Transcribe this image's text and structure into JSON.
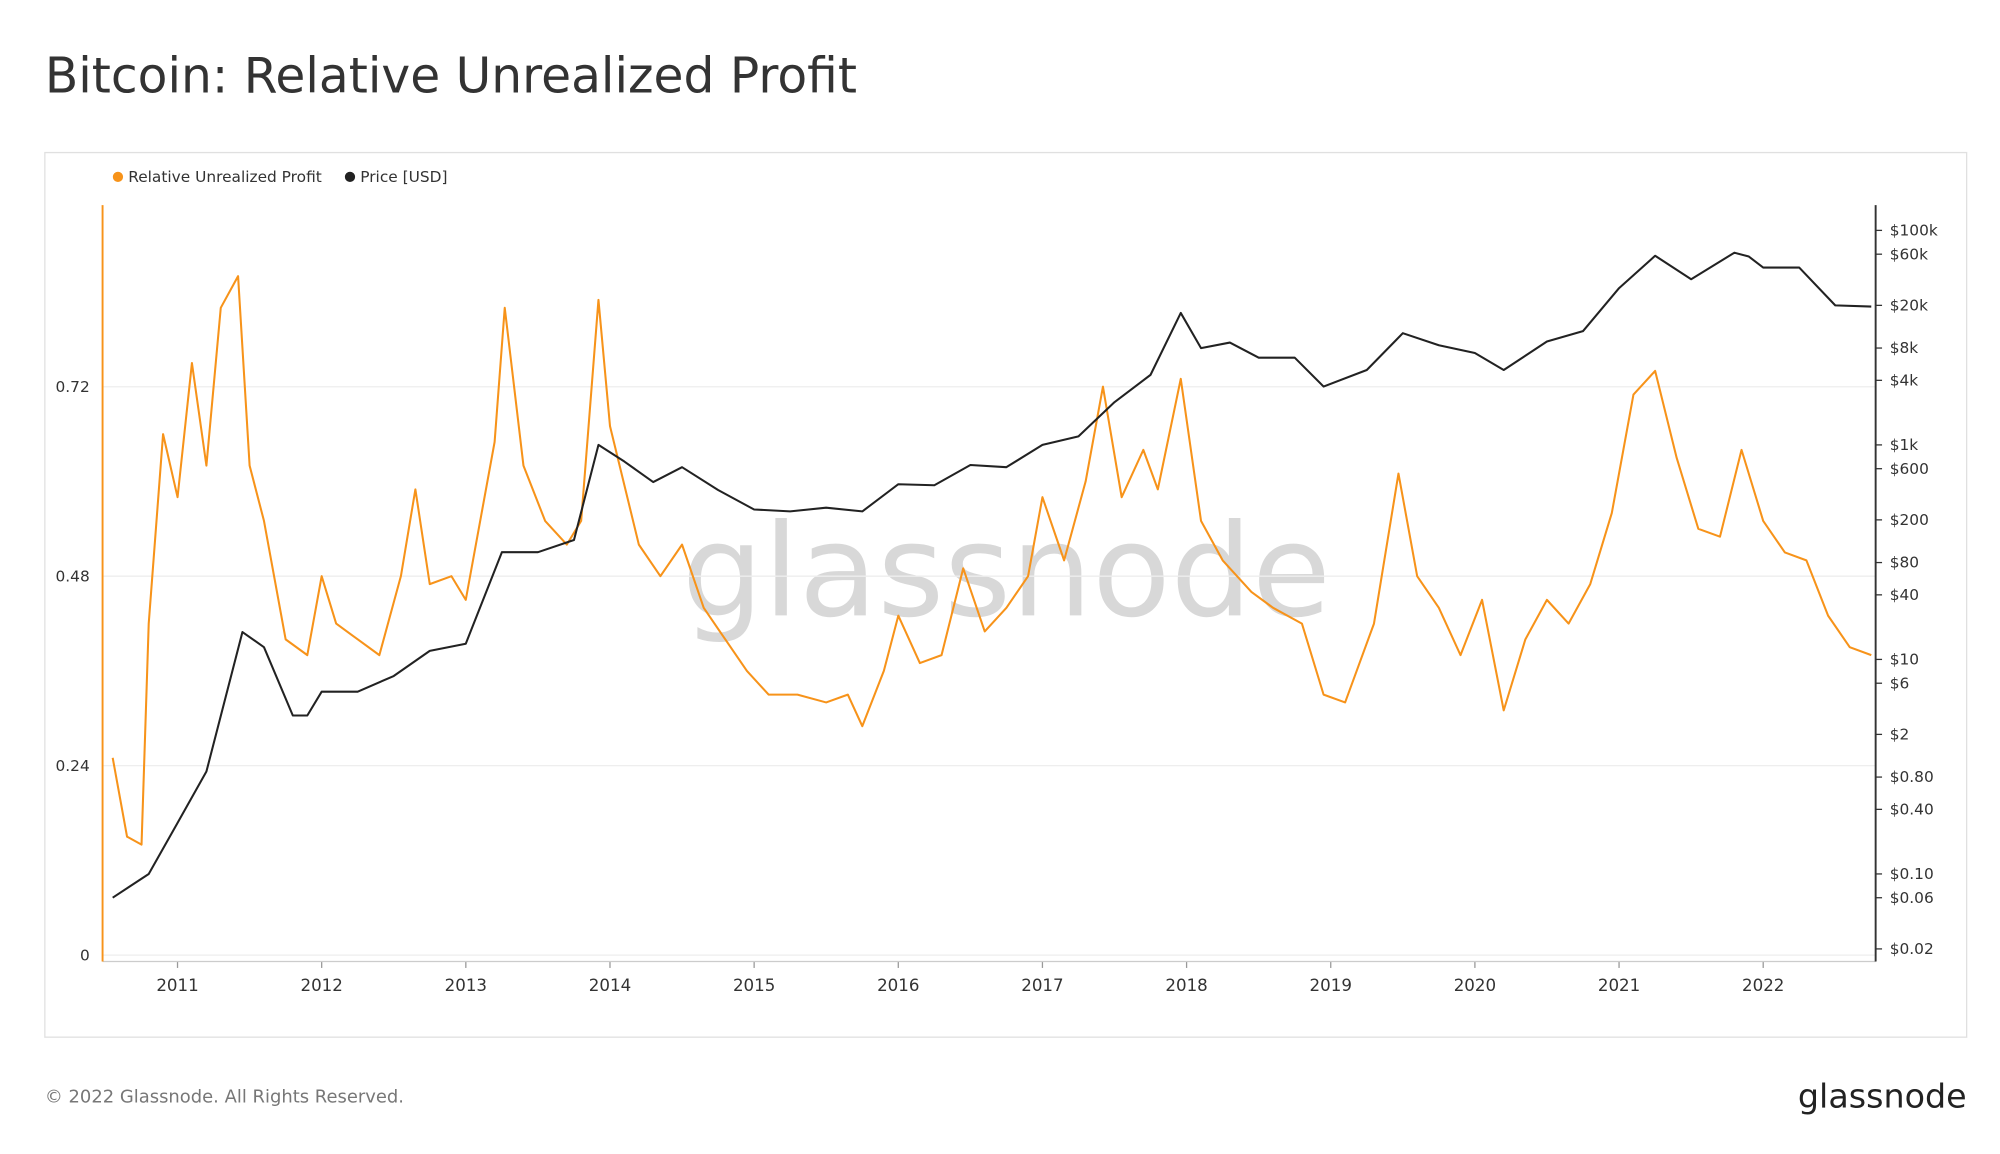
{
  "chart_data": {
    "type": "line",
    "title": "Bitcoin: Relative Unrealized Profit",
    "watermark": "glassnode",
    "footer": "© 2022 Glassnode. All Rights Reserved.",
    "logo": "glassnode",
    "grid": true,
    "xlim": [
      2010.48,
      2022.78
    ],
    "xticks": [
      2011,
      2012,
      2013,
      2014,
      2015,
      2016,
      2017,
      2018,
      2019,
      2020,
      2021,
      2022
    ],
    "ylim": [
      0,
      0.95
    ],
    "yticks": [
      0,
      0.24,
      0.48,
      0.72
    ],
    "y2lim": [
      0.0175,
      172000
    ],
    "y2scale": "log",
    "y2ticks": [
      {
        "value": 100000,
        "label": "$100k"
      },
      {
        "value": 60000,
        "label": "$60k"
      },
      {
        "value": 20000,
        "label": "$20k"
      },
      {
        "value": 8000,
        "label": "$8k"
      },
      {
        "value": 4000,
        "label": "$4k"
      },
      {
        "value": 1000,
        "label": "$1k"
      },
      {
        "value": 600,
        "label": "$600"
      },
      {
        "value": 200,
        "label": "$200"
      },
      {
        "value": 80,
        "label": "$80"
      },
      {
        "value": 40,
        "label": "$40"
      },
      {
        "value": 10,
        "label": "$10"
      },
      {
        "value": 6,
        "label": "$6"
      },
      {
        "value": 2,
        "label": "$2"
      },
      {
        "value": 0.8,
        "label": "$0.80"
      },
      {
        "value": 0.4,
        "label": "$0.40"
      },
      {
        "value": 0.1,
        "label": "$0.10"
      },
      {
        "value": 0.06,
        "label": "$0.06"
      },
      {
        "value": 0.02,
        "label": "$0.02"
      }
    ],
    "series": [
      {
        "name": "Relative Unrealized Profit",
        "color": "#f7931a",
        "x": [
          2010.55,
          2010.65,
          2010.75,
          2010.8,
          2010.9,
          2011.0,
          2011.1,
          2011.2,
          2011.3,
          2011.42,
          2011.5,
          2011.6,
          2011.75,
          2011.9,
          2012.0,
          2012.1,
          2012.25,
          2012.4,
          2012.55,
          2012.65,
          2012.75,
          2012.9,
          2013.0,
          2013.2,
          2013.27,
          2013.4,
          2013.55,
          2013.7,
          2013.8,
          2013.92,
          2014.0,
          2014.2,
          2014.35,
          2014.5,
          2014.65,
          2014.8,
          2014.95,
          2015.1,
          2015.3,
          2015.5,
          2015.65,
          2015.75,
          2015.9,
          2016.0,
          2016.15,
          2016.3,
          2016.45,
          2016.6,
          2016.75,
          2016.9,
          2017.0,
          2017.15,
          2017.3,
          2017.42,
          2017.55,
          2017.7,
          2017.8,
          2017.96,
          2018.1,
          2018.25,
          2018.45,
          2018.6,
          2018.8,
          2018.95,
          2019.1,
          2019.3,
          2019.47,
          2019.6,
          2019.75,
          2019.9,
          2020.05,
          2020.2,
          2020.35,
          2020.5,
          2020.65,
          2020.8,
          2020.95,
          2021.1,
          2021.25,
          2021.4,
          2021.55,
          2021.7,
          2021.85,
          2022.0,
          2022.15,
          2022.3,
          2022.45,
          2022.6,
          2022.75
        ],
        "values": [
          0.25,
          0.15,
          0.14,
          0.42,
          0.66,
          0.58,
          0.75,
          0.62,
          0.82,
          0.86,
          0.62,
          0.55,
          0.4,
          0.38,
          0.48,
          0.42,
          0.4,
          0.38,
          0.48,
          0.59,
          0.47,
          0.48,
          0.45,
          0.65,
          0.82,
          0.62,
          0.55,
          0.52,
          0.55,
          0.83,
          0.67,
          0.52,
          0.48,
          0.52,
          0.44,
          0.4,
          0.36,
          0.33,
          0.33,
          0.32,
          0.33,
          0.29,
          0.36,
          0.43,
          0.37,
          0.38,
          0.49,
          0.41,
          0.44,
          0.48,
          0.58,
          0.5,
          0.6,
          0.72,
          0.58,
          0.64,
          0.59,
          0.73,
          0.55,
          0.5,
          0.46,
          0.44,
          0.42,
          0.33,
          0.32,
          0.42,
          0.61,
          0.48,
          0.44,
          0.38,
          0.45,
          0.31,
          0.4,
          0.45,
          0.42,
          0.47,
          0.56,
          0.71,
          0.74,
          0.63,
          0.54,
          0.53,
          0.64,
          0.55,
          0.51,
          0.5,
          0.43,
          0.39,
          0.38
        ]
      },
      {
        "name": "Price [USD]",
        "color": "#222222",
        "axis": "y2",
        "x": [
          2010.55,
          2010.8,
          2011.0,
          2011.2,
          2011.45,
          2011.6,
          2011.8,
          2011.9,
          2012.0,
          2012.25,
          2012.5,
          2012.75,
          2013.0,
          2013.25,
          2013.5,
          2013.75,
          2013.92,
          2014.1,
          2014.3,
          2014.5,
          2014.75,
          2015.0,
          2015.25,
          2015.5,
          2015.75,
          2016.0,
          2016.25,
          2016.5,
          2016.75,
          2017.0,
          2017.25,
          2017.5,
          2017.75,
          2017.96,
          2018.1,
          2018.3,
          2018.5,
          2018.75,
          2018.95,
          2019.25,
          2019.5,
          2019.75,
          2020.0,
          2020.2,
          2020.5,
          2020.75,
          2021.0,
          2021.25,
          2021.5,
          2021.8,
          2021.9,
          2022.0,
          2022.25,
          2022.5,
          2022.75
        ],
        "values": [
          0.06,
          0.1,
          0.3,
          0.9,
          18,
          13,
          3,
          3,
          5,
          5,
          7,
          12,
          14,
          100,
          100,
          130,
          1000,
          700,
          450,
          620,
          380,
          250,
          240,
          260,
          240,
          430,
          420,
          650,
          620,
          1000,
          1200,
          2500,
          4500,
          17000,
          8000,
          9000,
          6500,
          6500,
          3500,
          5000,
          11000,
          8500,
          7200,
          5000,
          9200,
          11500,
          29000,
          58000,
          35000,
          62000,
          57000,
          45000,
          45000,
          20000,
          19500
        ]
      }
    ]
  }
}
